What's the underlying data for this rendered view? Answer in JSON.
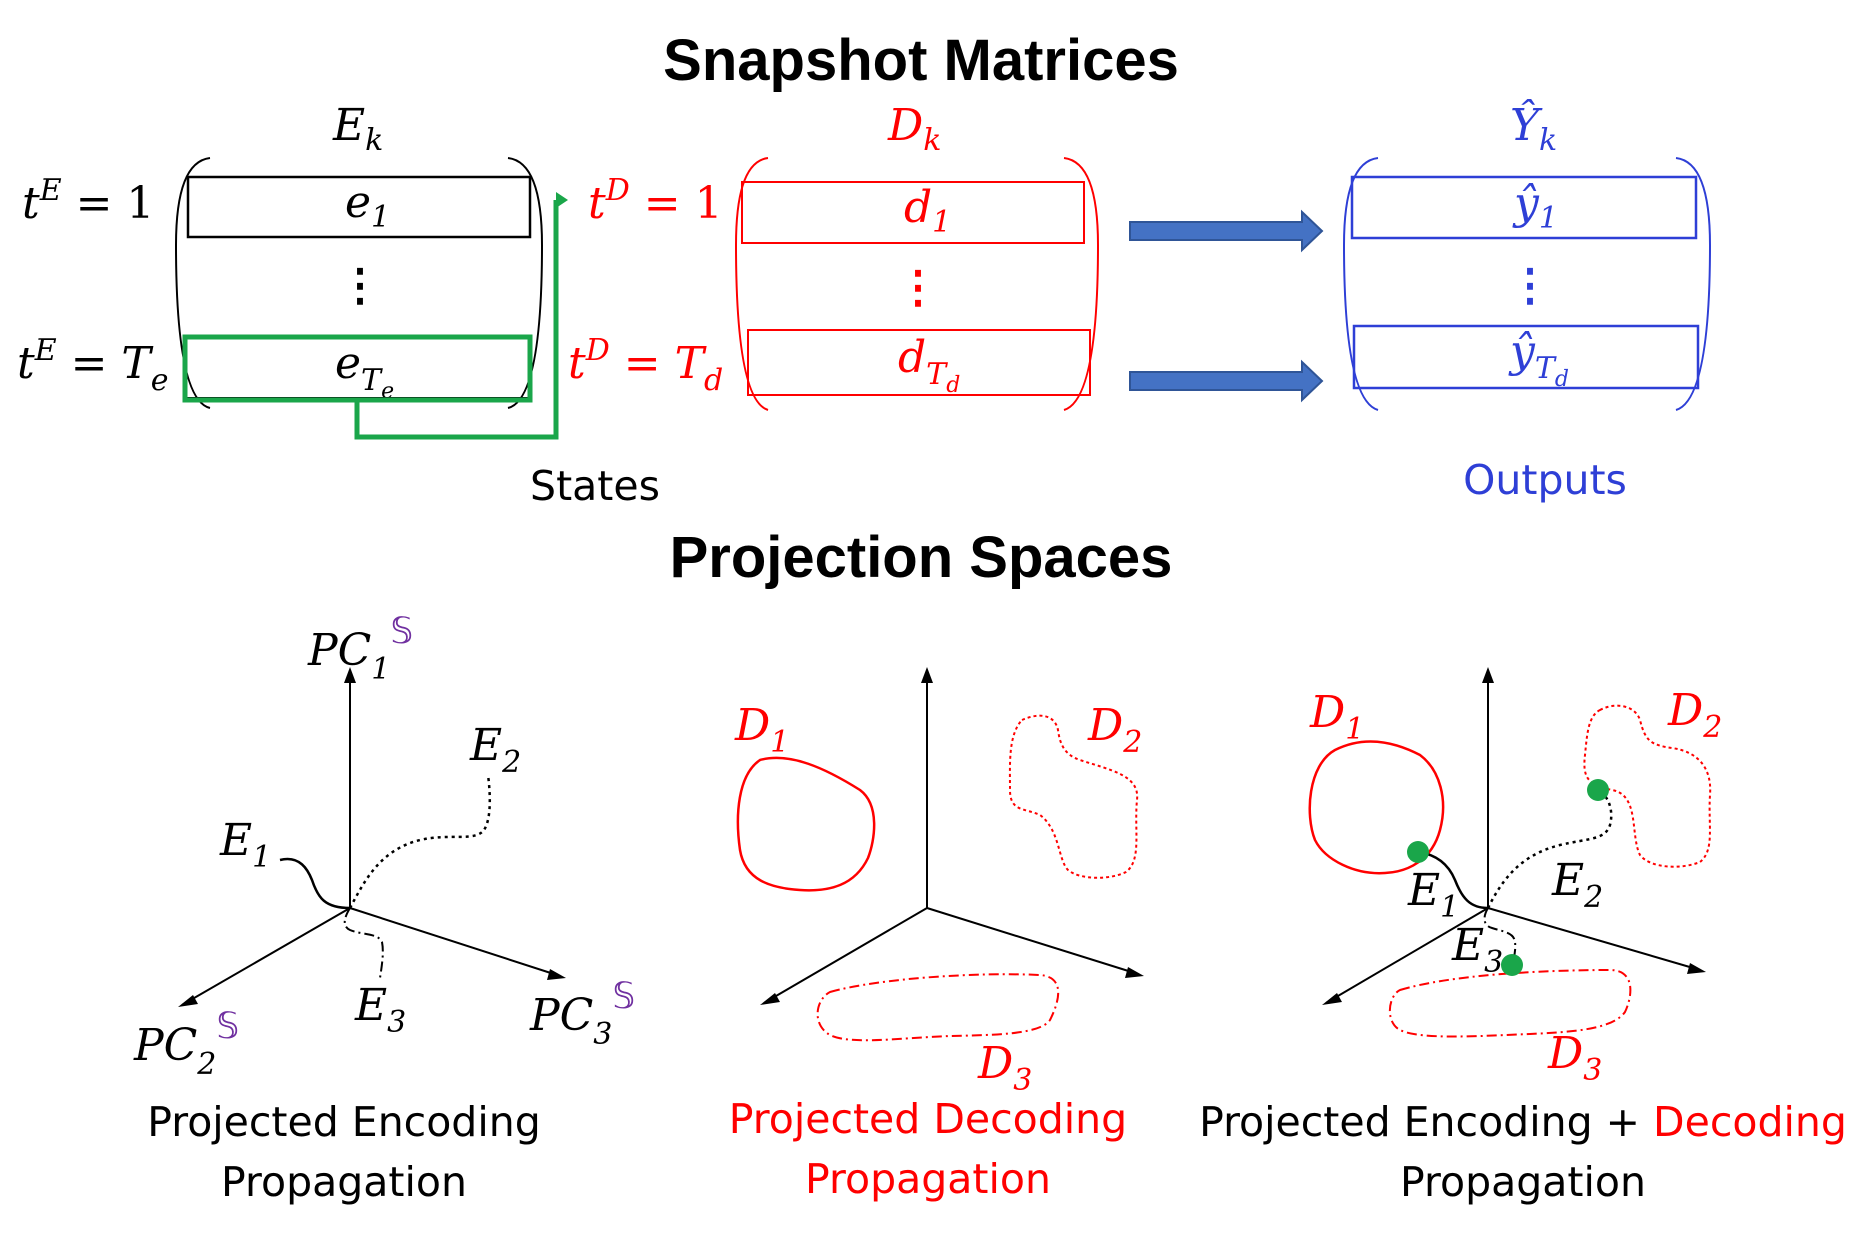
{
  "titles": {
    "snapshot": "Snapshot Matrices",
    "projection": "Projection Spaces"
  },
  "matrices": {
    "E": {
      "name": "E",
      "sub": "k",
      "row1": "e",
      "row1_sub": "1",
      "rowN": "e",
      "rowN_sub": "T",
      "rowN_subsub": "e"
    },
    "D": {
      "name": "D",
      "sub": "k",
      "row1": "d",
      "row1_sub": "1",
      "rowN": "d",
      "rowN_sub": "T",
      "rowN_subsub": "d"
    },
    "Y": {
      "name": "Ŷ",
      "sub": "k",
      "row1": "ŷ",
      "row1_sub": "1",
      "rowN": "ŷ",
      "rowN_sub": "T",
      "rowN_subsub": "d"
    },
    "dots": "⋮"
  },
  "time_labels": {
    "tE1": {
      "t": "t",
      "sup": "E",
      "rest": " = 1"
    },
    "tETe": {
      "t": "t",
      "sup": "E",
      "rest": " = T",
      "sub": "e"
    },
    "tD1": {
      "t": "t",
      "sup": "D",
      "rest": " = 1"
    },
    "tDTd": {
      "t": "t",
      "sup": "D",
      "rest": " = T",
      "sub": "d"
    }
  },
  "captions": {
    "states": "States",
    "outputs": "Outputs",
    "panel1_line1": "Projected Encoding",
    "panel1_line2": "Propagation",
    "panel2_line1": "Projected Decoding",
    "panel2_line2": "Propagation",
    "panel3_line1a": "Projected Encoding + ",
    "panel3_line1b": "Decoding",
    "panel3_line2": "Propagation"
  },
  "axes": {
    "pc": "PC",
    "pc1_sub": "1",
    "pc2_sub": "2",
    "pc3_sub": "3",
    "space_symbol": "𝕊"
  },
  "curve_labels": {
    "E": "E",
    "D": "D",
    "s1": "1",
    "s2": "2",
    "s3": "3"
  },
  "colors": {
    "black": "#000000",
    "red": "#ff0000",
    "blue": "#2e3fd6",
    "green": "#1aa64a",
    "purple": "#7030a0",
    "arrow_fill": "#4472c4",
    "arrow_stroke": "#2f5597"
  }
}
